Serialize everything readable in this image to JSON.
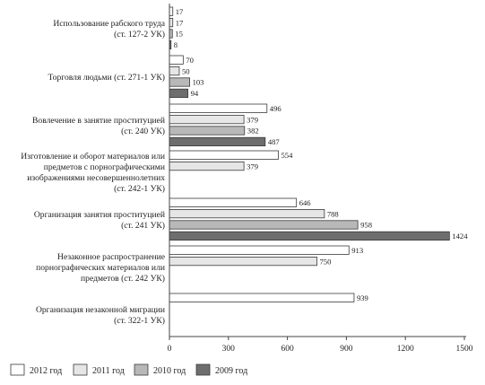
{
  "chart_data": {
    "type": "bar",
    "orientation": "horizontal",
    "categories": [
      [
        "Использование рабского труда",
        "(ст. 127-2 УК)"
      ],
      [
        "Торговля людьми (ст. 271-1 УК)"
      ],
      [
        "Вовлечение в занятие проституцией",
        "(ст. 240 УК)"
      ],
      [
        "Изготовление и оборот материалов или",
        "предметов с порнографическими",
        "изображениями несовершеннолетних",
        "(ст. 242-1 УК)"
      ],
      [
        "Организация занятия проституцией",
        "(ст. 241 УК)"
      ],
      [
        "Незаконное распространение",
        "порнографических материалов или",
        "предметов (ст. 242 УК)"
      ],
      [
        "Организация незаконной миграции",
        "(ст. 322-1 УК)"
      ]
    ],
    "series": [
      {
        "name": "2012 год",
        "color": "#ffffff",
        "values": [
          17,
          70,
          496,
          554,
          646,
          913,
          939
        ]
      },
      {
        "name": "2011 год",
        "color": "#e6e6e6",
        "values": [
          17,
          50,
          379,
          379,
          788,
          750,
          null
        ]
      },
      {
        "name": "2010 год",
        "color": "#b8b8b8",
        "values": [
          15,
          103,
          382,
          null,
          958,
          null,
          null
        ]
      },
      {
        "name": "2009 год",
        "color": "#6e6e6e",
        "values": [
          8,
          94,
          487,
          null,
          1424,
          null,
          null
        ]
      }
    ],
    "xlim": [
      0,
      1500
    ],
    "xticks": [
      "0",
      "300",
      "600",
      "900",
      "1200",
      "1500"
    ],
    "legend_position": "bottom",
    "grid": false
  }
}
